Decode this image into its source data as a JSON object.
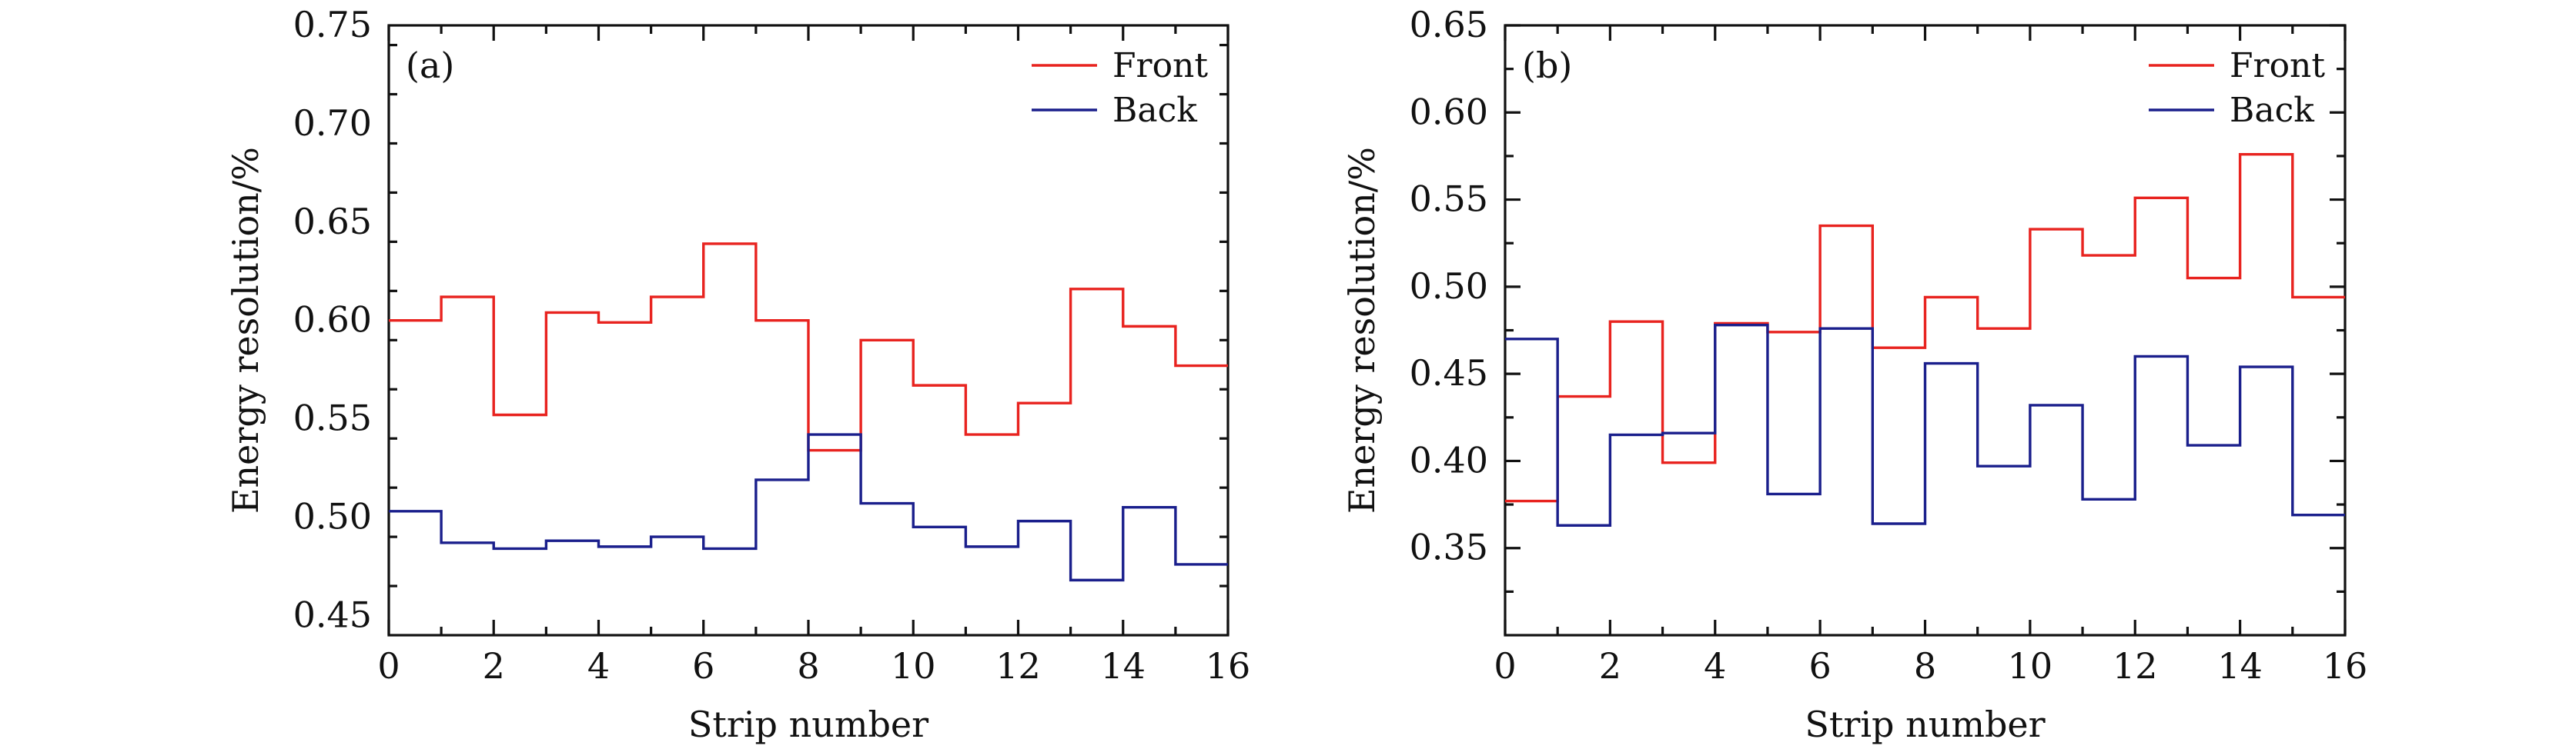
{
  "chart_data": [
    {
      "type": "line",
      "step": "post",
      "panel_label": "(a)",
      "xlabel": "Strip number",
      "ylabel": "Energy resolution/%",
      "xlim": [
        0,
        16
      ],
      "ylim": [
        0.44,
        0.75
      ],
      "x_ticks": [
        0,
        2,
        4,
        6,
        8,
        10,
        12,
        14,
        16
      ],
      "x_tick_labels": [
        "0",
        "2",
        "4",
        "6",
        "8",
        "10",
        "12",
        "14",
        "16"
      ],
      "y_ticks": [
        0.45,
        0.5,
        0.55,
        0.6,
        0.65,
        0.7,
        0.75
      ],
      "y_tick_labels": [
        "0.45",
        "0.50",
        "0.55",
        "0.60",
        "0.65",
        "0.70",
        "0.75"
      ],
      "legend_position": "top-right",
      "series": [
        {
          "name": "Front",
          "color": "#e8231f",
          "values": [
            0.6,
            0.612,
            0.552,
            0.604,
            0.599,
            0.612,
            0.639,
            0.6,
            0.534,
            0.59,
            0.567,
            0.542,
            0.558,
            0.616,
            0.597,
            0.577
          ]
        },
        {
          "name": "Back",
          "color": "#1a1f8c",
          "values": [
            0.503,
            0.487,
            0.484,
            0.488,
            0.485,
            0.49,
            0.484,
            0.519,
            0.542,
            0.507,
            0.495,
            0.485,
            0.498,
            0.468,
            0.505,
            0.476
          ]
        }
      ]
    },
    {
      "type": "line",
      "step": "post",
      "panel_label": "(b)",
      "xlabel": "Strip number",
      "ylabel": "Energy resolution/%",
      "xlim": [
        0,
        16
      ],
      "ylim": [
        0.3,
        0.65
      ],
      "x_ticks": [
        0,
        2,
        4,
        6,
        8,
        10,
        12,
        14,
        16
      ],
      "x_tick_labels": [
        "0",
        "2",
        "4",
        "6",
        "8",
        "10",
        "12",
        "14",
        "16"
      ],
      "y_ticks": [
        0.35,
        0.4,
        0.45,
        0.5,
        0.55,
        0.6,
        0.65
      ],
      "y_tick_labels": [
        "0.35",
        "0.40",
        "0.45",
        "0.50",
        "0.55",
        "0.60",
        "0.65"
      ],
      "legend_position": "top-right",
      "series": [
        {
          "name": "Front",
          "color": "#e8231f",
          "values": [
            0.377,
            0.437,
            0.48,
            0.399,
            0.479,
            0.474,
            0.535,
            0.465,
            0.494,
            0.476,
            0.533,
            0.518,
            0.551,
            0.505,
            0.576,
            0.494
          ]
        },
        {
          "name": "Back",
          "color": "#1a1f8c",
          "values": [
            0.47,
            0.363,
            0.415,
            0.416,
            0.478,
            0.381,
            0.476,
            0.364,
            0.456,
            0.397,
            0.432,
            0.378,
            0.46,
            0.409,
            0.454,
            0.369
          ]
        }
      ]
    }
  ]
}
